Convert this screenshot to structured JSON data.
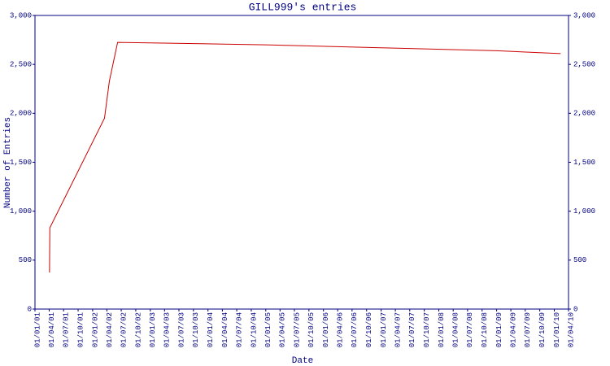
{
  "chart_data": {
    "type": "line",
    "title": "GILL999's entries",
    "x_label": "Date",
    "y_label": "Number of Entries",
    "x": [
      "03/04/01",
      "05/04/01",
      "17/03/02",
      "17/04/02",
      "08/06/02",
      "01/01/03",
      "01/01/05",
      "01/01/07",
      "01/01/09",
      "10/02/10"
    ],
    "series": [
      {
        "name": "entries",
        "color": "#cc0000",
        "values": [
          374,
          830,
          1950,
          2330,
          2725,
          2720,
          2700,
          2670,
          2640,
          2610
        ]
      }
    ],
    "xlim": [
      "01/01/01",
      "01/04/10"
    ],
    "xticks": [
      "01/01/01",
      "01/04/01",
      "01/07/01",
      "01/10/01",
      "01/01/02",
      "01/04/02",
      "01/07/02",
      "01/10/02",
      "01/01/03",
      "01/04/03",
      "01/07/03",
      "01/10/03",
      "01/01/04",
      "01/04/04",
      "01/07/04",
      "01/10/04",
      "01/01/05",
      "01/04/05",
      "01/07/05",
      "01/10/05",
      "01/01/06",
      "01/04/06",
      "01/07/06",
      "01/10/06",
      "01/01/07",
      "01/04/07",
      "01/07/07",
      "01/10/07",
      "01/01/08",
      "01/04/08",
      "01/07/08",
      "01/10/08",
      "01/01/09",
      "01/04/09",
      "01/07/09",
      "01/10/09",
      "01/01/10",
      "01/04/10"
    ],
    "ylim": [
      0,
      3000
    ],
    "yticks": [
      0,
      500,
      {
        "value": 1000,
        "label": "1,000"
      },
      {
        "value": 1500,
        "label": "1,500"
      },
      {
        "value": 2000,
        "label": "2,000"
      },
      {
        "value": 2500,
        "label": "2,500"
      },
      {
        "value": 3000,
        "label": "3,000"
      }
    ],
    "y2lim": [
      0,
      3000
    ],
    "y2ticks": [
      0,
      500,
      {
        "value": 1000,
        "label": "1,000"
      },
      {
        "value": 1500,
        "label": "1,500"
      },
      {
        "value": 2000,
        "label": "2,000"
      },
      {
        "value": 2500,
        "label": "2,500"
      },
      {
        "value": 3000,
        "label": "3,000"
      }
    ]
  }
}
